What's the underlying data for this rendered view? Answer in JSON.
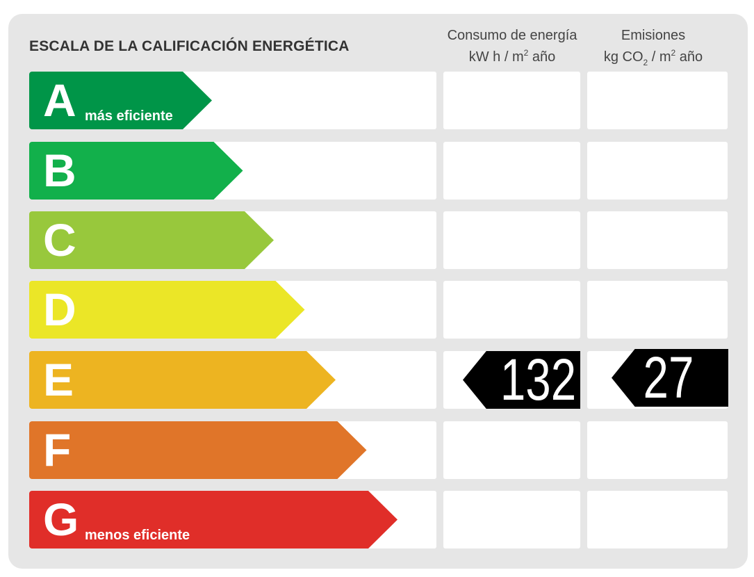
{
  "title": "ESCALA DE LA CALIFICACIÓN ENERGÉTICA",
  "columns": {
    "energy": {
      "line1": "Consumo de energía",
      "unit_a": "kW h  / m",
      "unit_sup": "2",
      "unit_b": " año"
    },
    "emissions": {
      "line1": "Emisiones",
      "unit_a": "kg CO",
      "unit_sub": "2",
      "unit_b": "  / m",
      "unit_sup": "2",
      "unit_c": " año"
    }
  },
  "ratings": [
    {
      "letter": "A",
      "note": "más eficiente",
      "color": "#009548"
    },
    {
      "letter": "B",
      "note": "",
      "color": "#12b04b"
    },
    {
      "letter": "C",
      "note": "",
      "color": "#98c83c"
    },
    {
      "letter": "D",
      "note": "",
      "color": "#ebe627"
    },
    {
      "letter": "E",
      "note": "",
      "color": "#edb421"
    },
    {
      "letter": "F",
      "note": "",
      "color": "#e07529"
    },
    {
      "letter": "G",
      "note": "menos eficiente",
      "color": "#e02e29"
    }
  ],
  "result": {
    "rating": "E",
    "energy_value": "132",
    "emissions_value": "27"
  }
}
